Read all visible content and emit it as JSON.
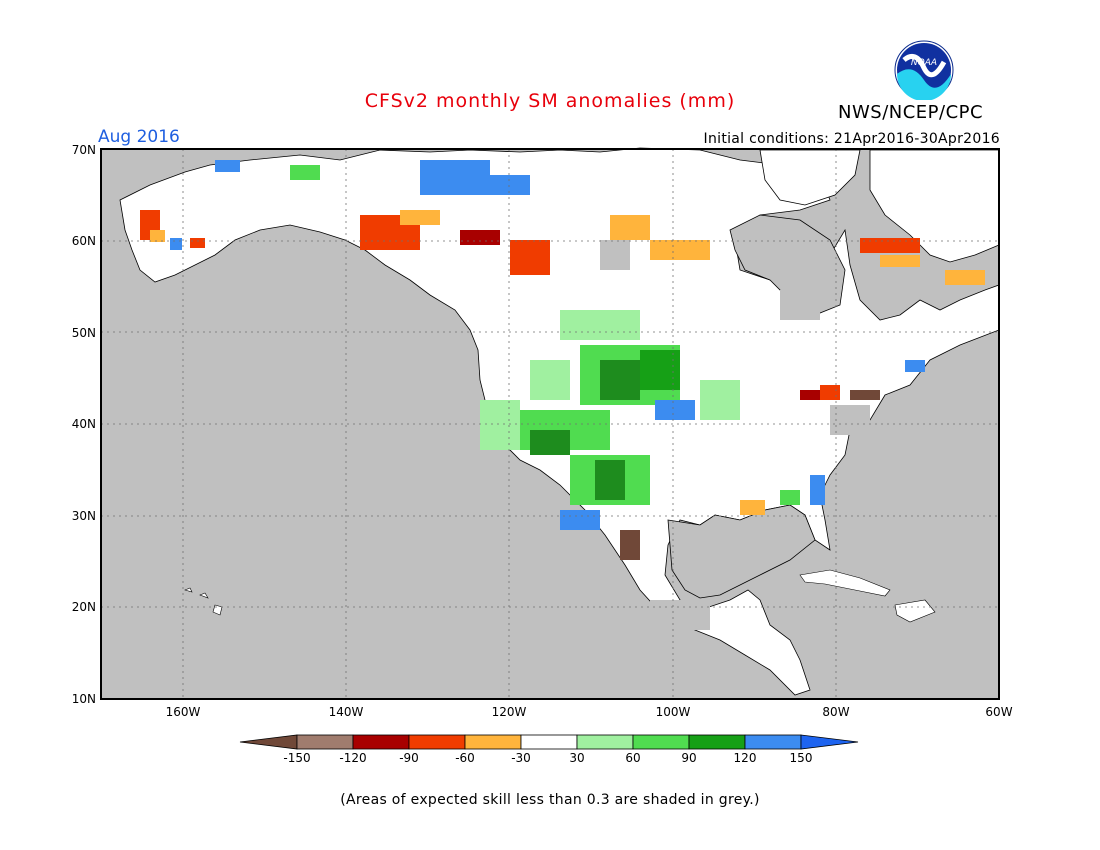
{
  "title": "CFSv2 monthly SM anomalies (mm)",
  "agency": "NWS/NCEP/CPC",
  "logo_text": "NOAA",
  "target_month": "Aug 2016",
  "initial_conditions": "Initial conditions: 21Apr2016-30Apr2016",
  "footnote": "(Areas of expected skill less than 0.3 are shaded in grey.)",
  "map": {
    "lat_labels": [
      "70N",
      "60N",
      "50N",
      "40N",
      "30N",
      "20N",
      "10N"
    ],
    "lon_labels": [
      "160W",
      "140W",
      "120W",
      "100W",
      "80W",
      "60W"
    ],
    "lat_range": [
      10,
      70
    ],
    "lon_range": [
      -170,
      -60
    ],
    "grid": "dotted",
    "colors": {
      "ocean": "#c0c0c0",
      "land": "#ffffff",
      "low_skill": "#c0c0c0",
      "neg150": "#704838",
      "neg120": "#a07c6e",
      "neg90": "#a80000",
      "neg60": "#f03c00",
      "neg30": "#ffb43c",
      "near0": "#ffffff",
      "pos30": "#a0f0a0",
      "pos60": "#50dc50",
      "pos90": "#16a016",
      "pos120": "#1e8c1e",
      "pos150": "#3c8cf0"
    }
  },
  "colorbar": {
    "labels": [
      "-150",
      "-120",
      "-90",
      "-60",
      "-30",
      "30",
      "60",
      "90",
      "120",
      "150"
    ],
    "colors": [
      "#704838",
      "#a07c6e",
      "#a80000",
      "#f03c00",
      "#ffb43c",
      "#ffffff",
      "#a0f0a0",
      "#50dc50",
      "#16a016",
      "#3c8cf0",
      "#1e64f0"
    ]
  }
}
